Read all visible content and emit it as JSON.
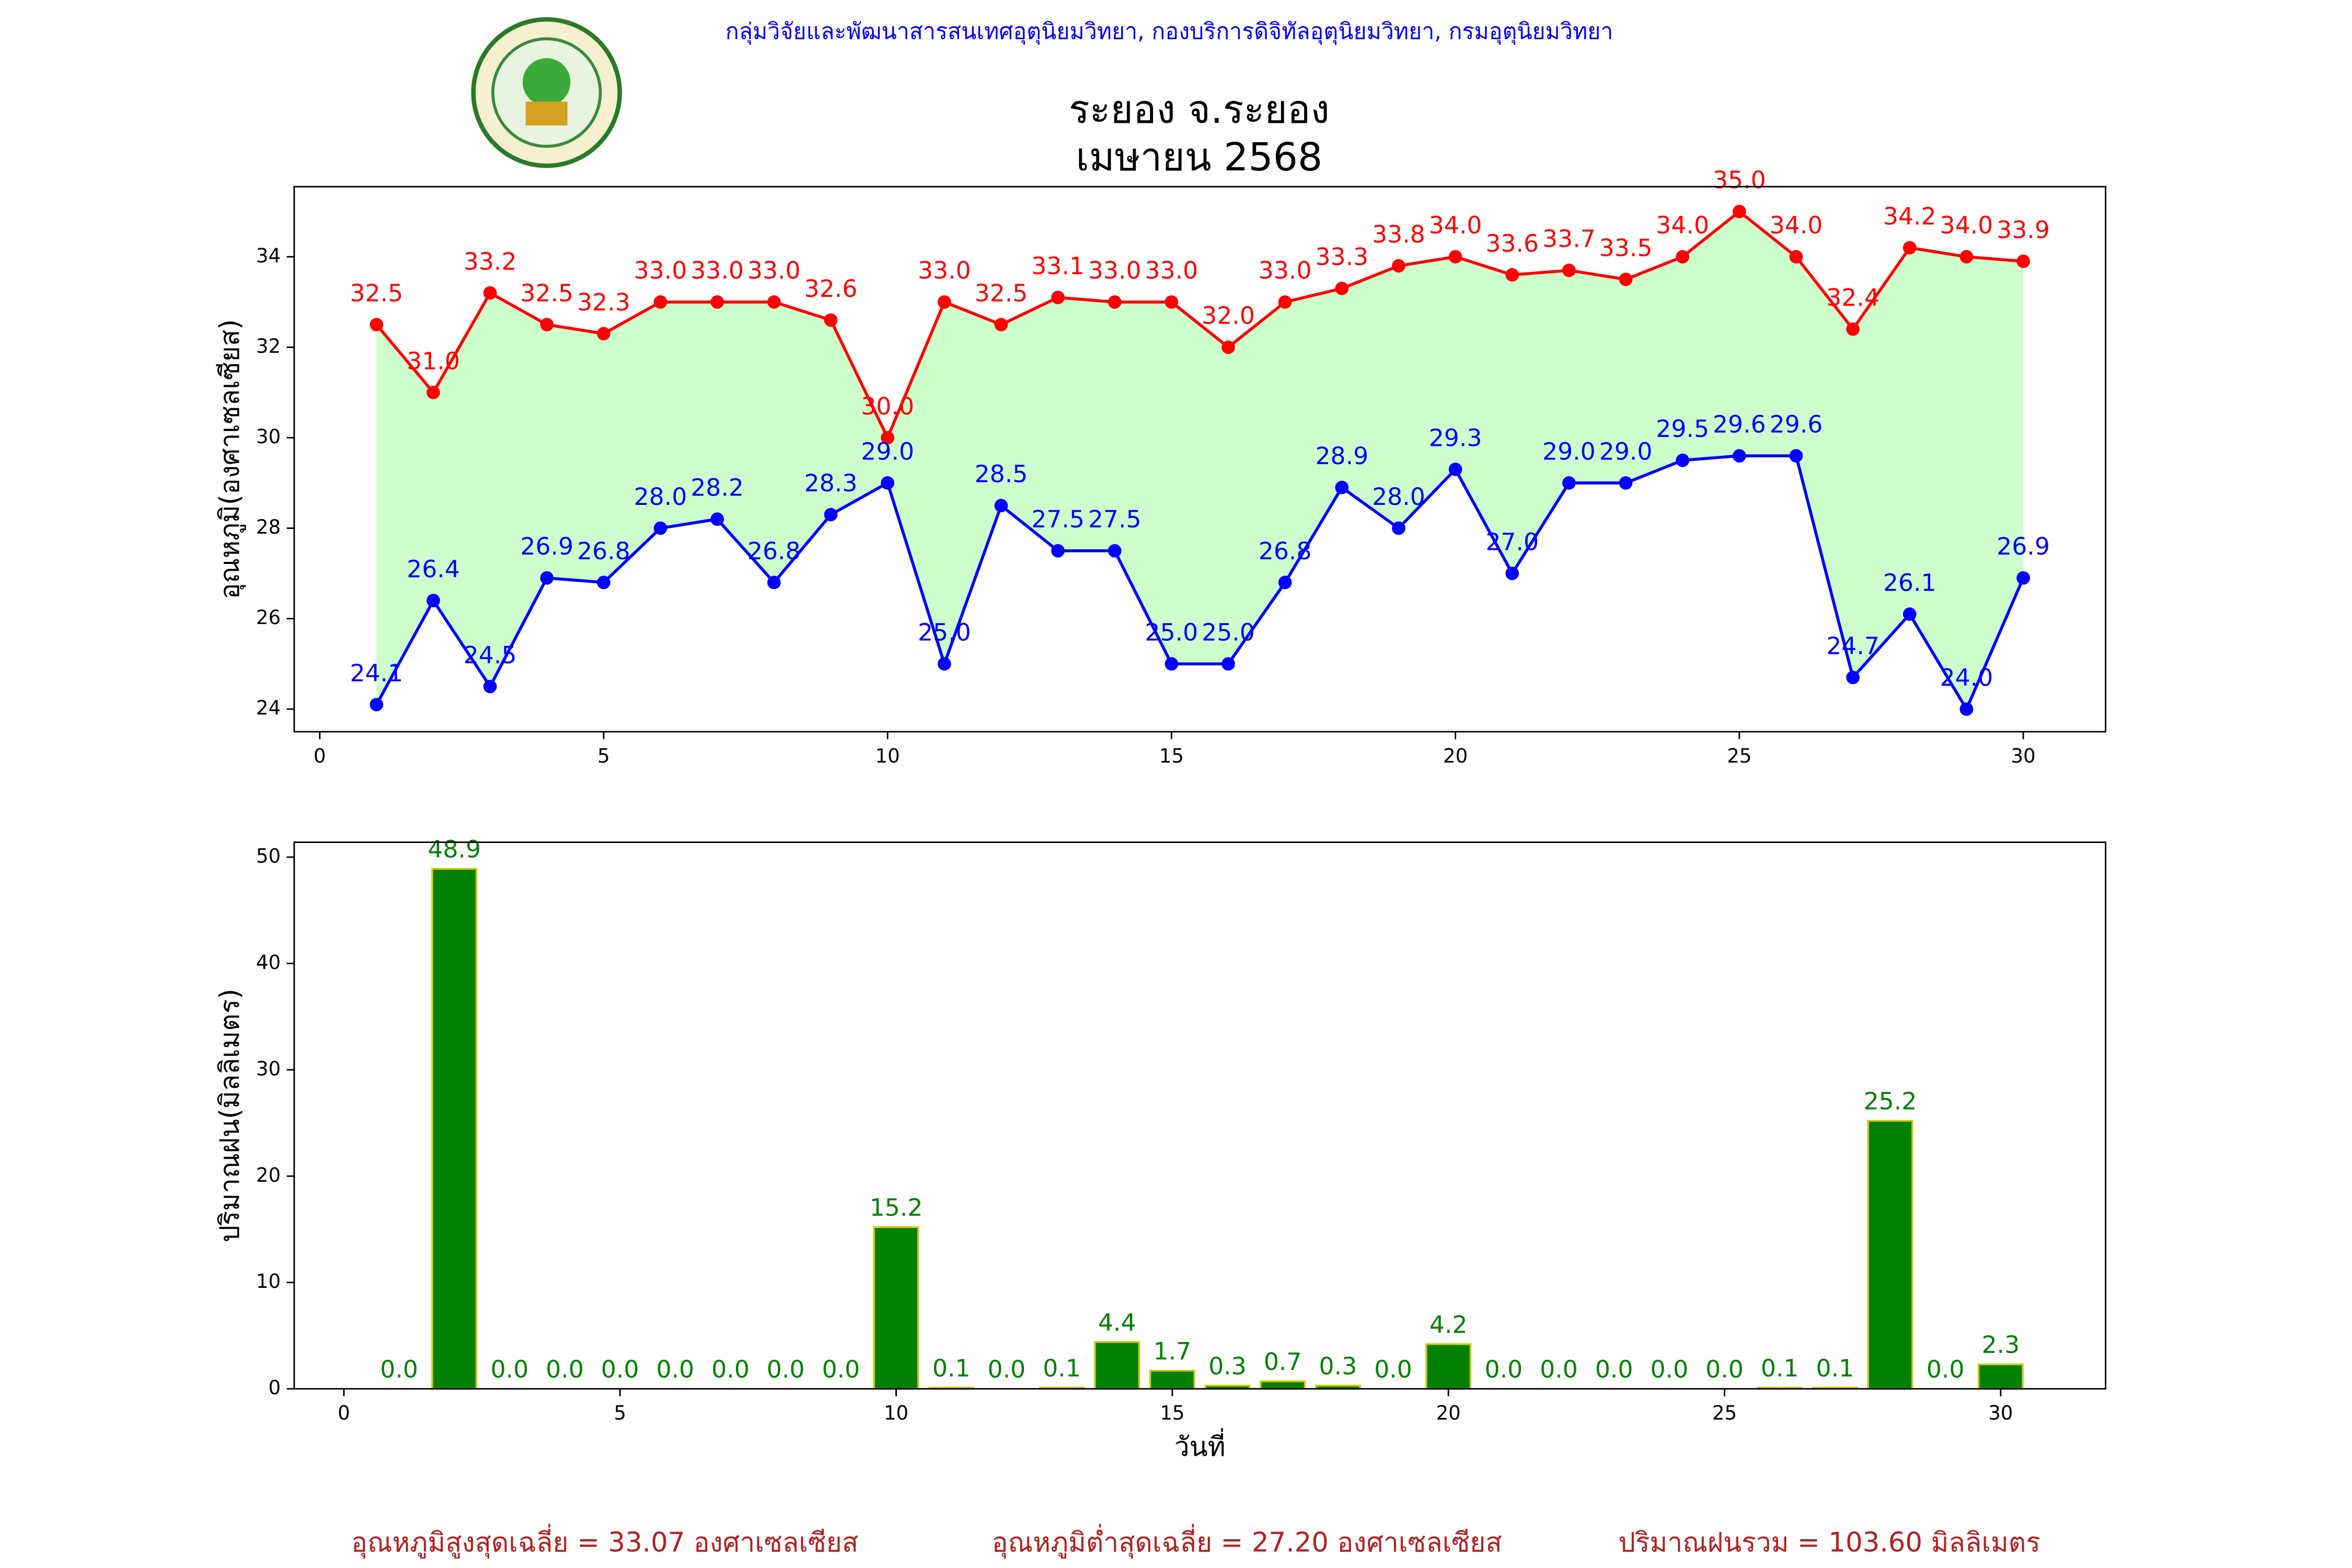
{
  "header": "กลุ่มวิจัยและพัฒนาสารสนเทศอุตุนิยมวิทยา, กองบริการดิจิทัลอุตุนิยมวิทยา, กรมอุตุนิยมวิทยา",
  "title": [
    "ระยอง จ.ระยอง",
    "เมษายน 2568"
  ],
  "footer": [
    "อุณหภูมิสูงสุดเฉลี่ย = 33.07 องศาเซลเซียส",
    "อุณหภูมิต่ำสุดเฉลี่ย = 27.20 องศาเซลเซียส",
    "ปริมาณฝนรวม = 103.60 มิลลิเมตร"
  ],
  "chart_data": [
    {
      "type": "line",
      "y_label": "อุณหภูมิ(องศาเซลเซียส)",
      "fill_color": "#ccffcc",
      "x": [
        1,
        2,
        3,
        4,
        5,
        6,
        7,
        8,
        9,
        10,
        11,
        12,
        13,
        14,
        15,
        16,
        17,
        18,
        19,
        20,
        21,
        22,
        23,
        24,
        25,
        26,
        27,
        28,
        29,
        30
      ],
      "series": [
        {
          "color": "#ff0000",
          "values": [
            32.5,
            31.0,
            33.2,
            32.5,
            32.3,
            33.0,
            33.0,
            33.0,
            32.6,
            30.0,
            33.0,
            32.5,
            33.1,
            33.0,
            33.0,
            32.0,
            33.0,
            33.3,
            33.8,
            34.0,
            33.6,
            33.7,
            33.5,
            34.0,
            35.0,
            34.0,
            32.4,
            34.2,
            34.0,
            33.9
          ],
          "value_labels": [
            "32.5",
            "31.0",
            "33.2",
            "32.5",
            "32.3",
            "33.0",
            "33.0",
            "33.0",
            "32.6",
            "30.0",
            "33.0",
            "32.5",
            "33.1",
            "33.0",
            "33.0",
            "32.0",
            "33.0",
            "33.3",
            "33.8",
            "34.0",
            "33.6",
            "33.7",
            "33.5",
            "34.0",
            "35.0",
            "34.0",
            "32.4",
            "34.2",
            "34.0",
            "33.9"
          ]
        },
        {
          "color": "#0000ff",
          "values": [
            24.1,
            26.4,
            24.5,
            26.9,
            26.8,
            28.0,
            28.2,
            26.8,
            28.3,
            29.0,
            25.0,
            28.5,
            27.5,
            27.5,
            25.0,
            25.0,
            26.8,
            28.9,
            28.0,
            29.3,
            27.0,
            29.0,
            29.0,
            29.5,
            29.6,
            29.6,
            24.7,
            26.1,
            24.0,
            26.9
          ],
          "value_labels": [
            "24.1",
            "26.4",
            "24.5",
            "26.9",
            "26.8",
            "28.0",
            "28.2",
            "26.8",
            "28.3",
            "29.0",
            "25.0",
            "28.5",
            "27.5",
            "27.5",
            "25.0",
            "25.0",
            "26.8",
            "28.9",
            "28.0",
            "29.3",
            "27.0",
            "29.0",
            "29.0",
            "29.5",
            "29.6",
            "29.6",
            "24.7",
            "26.1",
            "24.0",
            "26.9"
          ]
        }
      ],
      "xlim": [
        -0.45,
        31.45
      ],
      "xticks": [
        0,
        5,
        10,
        15,
        20,
        25,
        30
      ],
      "ylim": [
        23.5,
        35.55
      ],
      "yticks": [
        24,
        26,
        28,
        30,
        32,
        34
      ]
    },
    {
      "type": "bar",
      "x_label": "วันที่",
      "y_label": "ปริมาณฝน(มิลลิเมตร)",
      "color": "#008000",
      "edge_color": "#d4c800",
      "x": [
        1,
        2,
        3,
        4,
        5,
        6,
        7,
        8,
        9,
        10,
        11,
        12,
        13,
        14,
        15,
        16,
        17,
        18,
        19,
        20,
        21,
        22,
        23,
        24,
        25,
        26,
        27,
        28,
        29,
        30
      ],
      "values": [
        0.0,
        48.9,
        0.0,
        0.0,
        0.0,
        0.0,
        0.0,
        0.0,
        0.0,
        15.2,
        0.1,
        0.0,
        0.1,
        4.4,
        1.7,
        0.3,
        0.7,
        0.3,
        0.0,
        4.2,
        0.0,
        0.0,
        0.0,
        0.0,
        0.0,
        0.1,
        0.1,
        25.2,
        0.0,
        2.3
      ],
      "value_labels": [
        "0.0",
        "48.9",
        "0.0",
        "0.0",
        "0.0",
        "0.0",
        "0.0",
        "0.0",
        "0.0",
        "15.2",
        "0.1",
        "0.0",
        "0.1",
        "4.4",
        "1.7",
        "0.3",
        "0.7",
        "0.3",
        "0.0",
        "4.2",
        "0.0",
        "0.0",
        "0.0",
        "0.0",
        "0.0",
        "0.1",
        "0.1",
        "25.2",
        "0.0",
        "2.3"
      ],
      "xlim": [
        -0.9,
        31.9
      ],
      "xticks": [
        0,
        5,
        10,
        15,
        20,
        25,
        30
      ],
      "ylim": [
        0,
        51.4
      ],
      "yticks": [
        0,
        10,
        20,
        30,
        40,
        50
      ]
    }
  ]
}
